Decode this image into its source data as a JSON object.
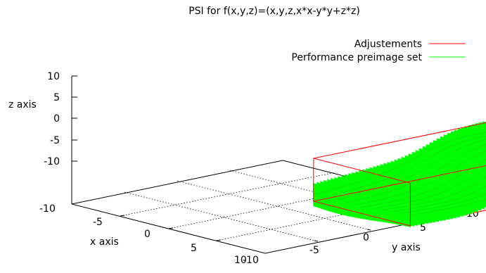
{
  "chart_data": {
    "type": "3d-surface",
    "title": "PSI for f(x,y,z)=(x,y,z,x*x-y*y+z*z)",
    "xlabel": "x axis",
    "ylabel": "y axis",
    "zlabel": "z axis",
    "xlim": [
      -10,
      10
    ],
    "ylim": [
      -10,
      10
    ],
    "zlim": [
      -10,
      10
    ],
    "x_ticks": [
      "-10",
      "-5",
      "0",
      "5",
      "10"
    ],
    "y_ticks": [
      "-10",
      "-5",
      "0",
      "5",
      "10"
    ],
    "z_ticks": [
      "10",
      "5",
      "0",
      "-5",
      "-10"
    ],
    "grid": true,
    "legend_position": "top-right",
    "series": [
      {
        "name": "Adjustements",
        "color": "#ff0000",
        "kind": "box",
        "x": [
          -5,
          5
        ],
        "y": [
          -10,
          10
        ],
        "z": [
          -5,
          5
        ]
      },
      {
        "name": "Performance preimage set",
        "color": "#00ff00",
        "kind": "surface",
        "x": [
          -5,
          5
        ],
        "y": [
          -10,
          10
        ],
        "z": [
          -5,
          5
        ]
      }
    ]
  }
}
